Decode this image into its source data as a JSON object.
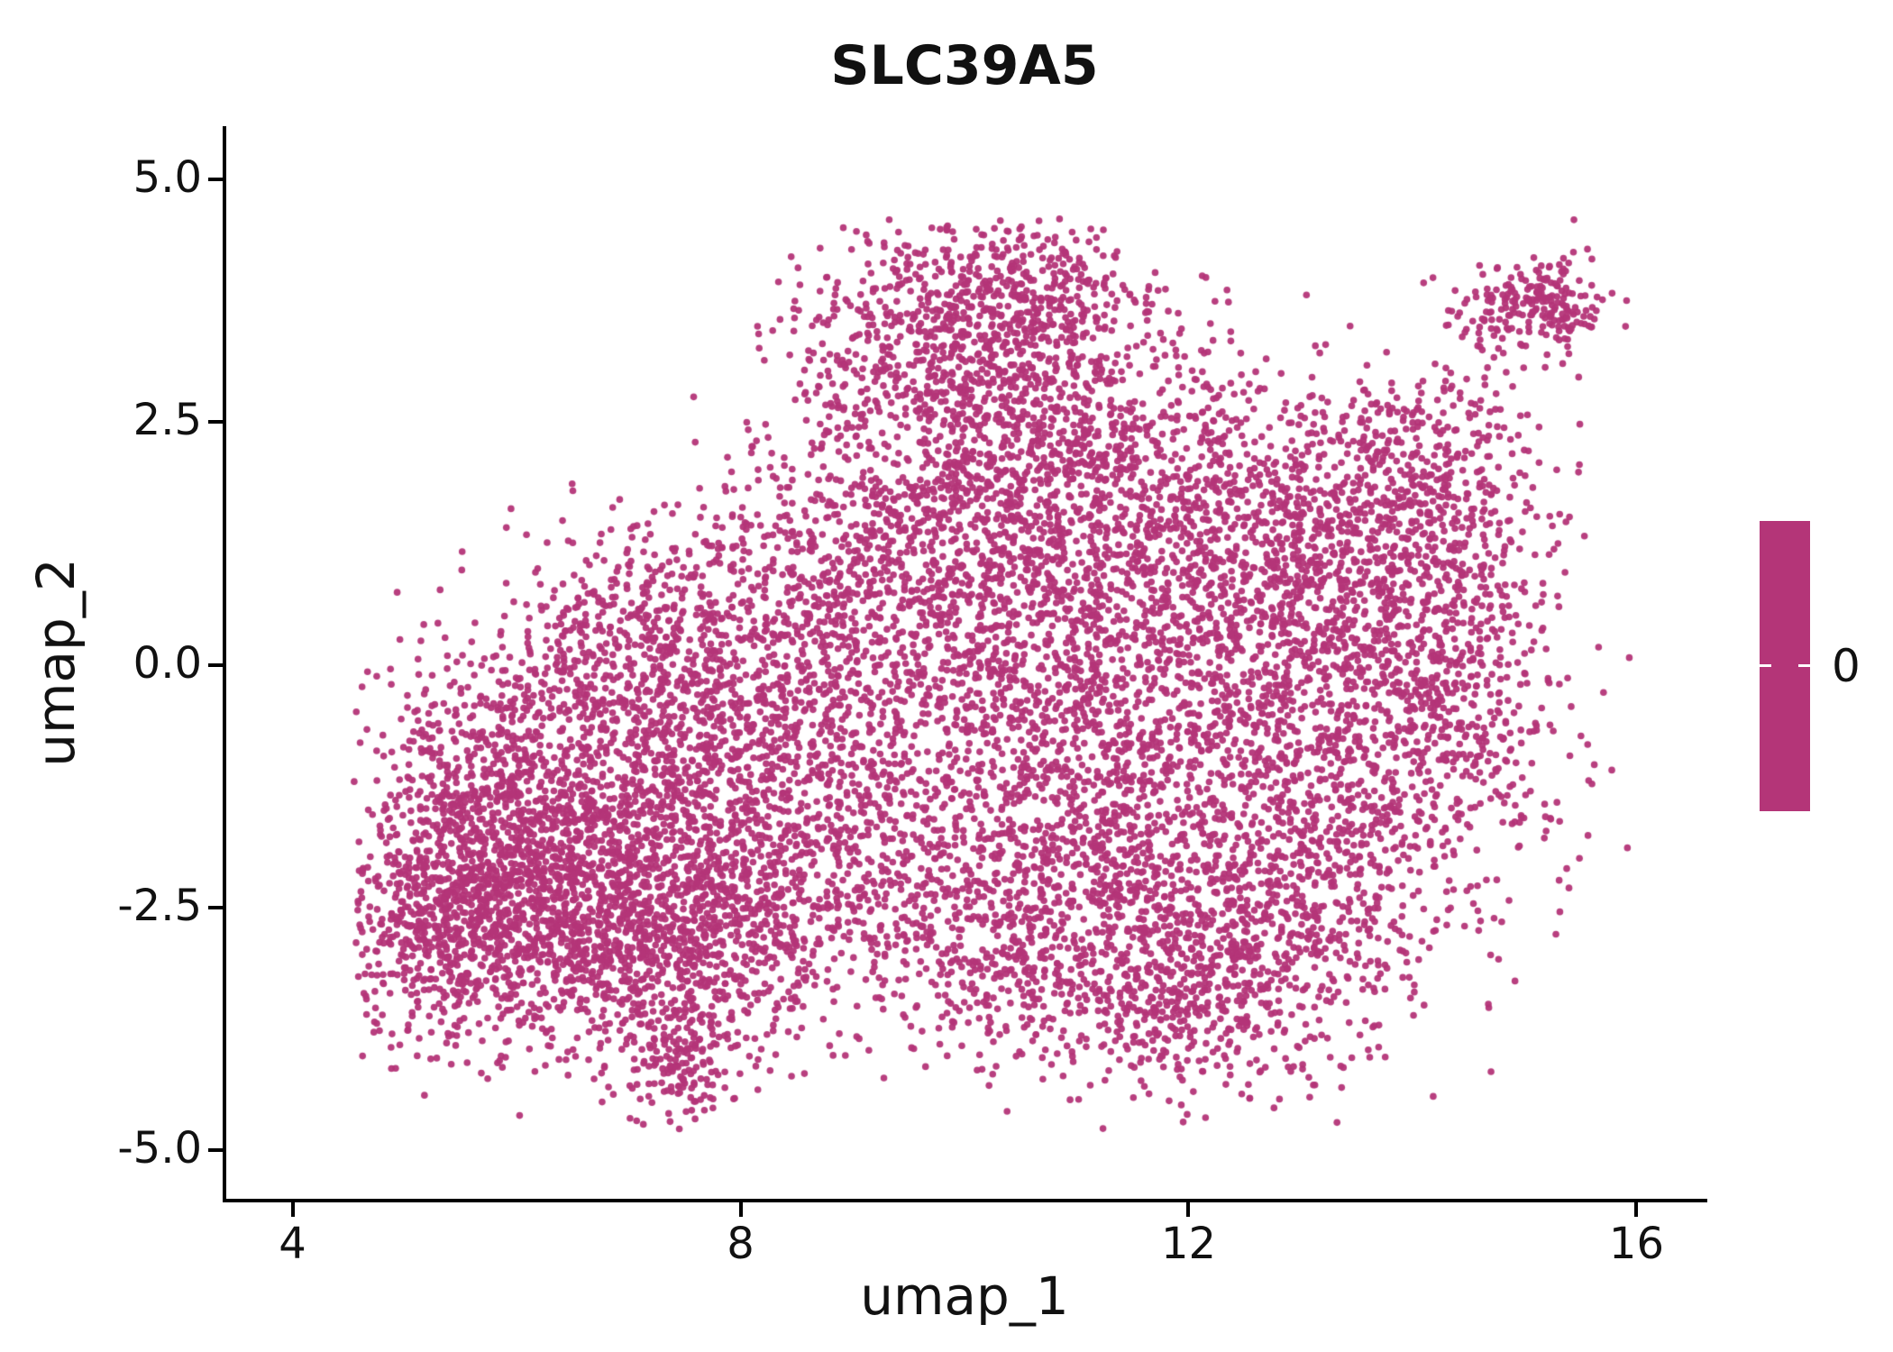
{
  "chart_data": {
    "type": "scatter",
    "title": "SLC39A5",
    "xlabel": "umap_1",
    "ylabel": "umap_2",
    "xlim": [
      3.4,
      16.6
    ],
    "ylim": [
      -5.5,
      5.55
    ],
    "xticks": [
      4,
      8,
      12,
      16
    ],
    "xtick_labels": [
      "4",
      "8",
      "12",
      "16"
    ],
    "yticks": [
      -5.0,
      -2.5,
      0.0,
      2.5,
      5.0
    ],
    "ytick_labels": [
      "-5.0",
      "-2.5",
      "0.0",
      "2.5",
      "5.0"
    ],
    "grid": false,
    "legend_position": "right",
    "point_color": "#b43578",
    "point_radius_px": 3.8,
    "n_points_approx": 13500,
    "expression_value": 0,
    "colorbar": {
      "tick_label": "0",
      "color": "#b43578"
    },
    "clip": {
      "xmin": 4.55,
      "xmax": 15.95,
      "ymin": -4.8,
      "ymax": 4.6
    },
    "clusters": [
      {
        "x": 5.6,
        "y": -1.6,
        "sx": 0.55,
        "sy": 0.75,
        "n": 550
      },
      {
        "x": 6.1,
        "y": -2.6,
        "sx": 0.75,
        "sy": 0.65,
        "n": 900
      },
      {
        "x": 6.6,
        "y": -1.4,
        "sx": 0.8,
        "sy": 0.8,
        "n": 700
      },
      {
        "x": 7.4,
        "y": -2.9,
        "sx": 0.75,
        "sy": 0.6,
        "n": 650
      },
      {
        "x": 7.3,
        "y": -0.6,
        "sx": 0.8,
        "sy": 0.8,
        "n": 600
      },
      {
        "x": 8.3,
        "y": -2.0,
        "sx": 0.8,
        "sy": 0.8,
        "n": 550
      },
      {
        "x": 8.8,
        "y": -0.4,
        "sx": 0.8,
        "sy": 0.9,
        "n": 550
      },
      {
        "x": 9.6,
        "y": 1.2,
        "sx": 0.8,
        "sy": 0.9,
        "n": 600
      },
      {
        "x": 10.3,
        "y": 2.5,
        "sx": 0.7,
        "sy": 0.7,
        "n": 550
      },
      {
        "x": 10.4,
        "y": 3.8,
        "sx": 0.55,
        "sy": 0.45,
        "n": 500
      },
      {
        "x": 10.6,
        "y": 0.3,
        "sx": 0.9,
        "sy": 1.0,
        "n": 700
      },
      {
        "x": 11.0,
        "y": -1.6,
        "sx": 0.9,
        "sy": 0.9,
        "n": 650
      },
      {
        "x": 11.6,
        "y": 1.8,
        "sx": 0.9,
        "sy": 0.8,
        "n": 650
      },
      {
        "x": 12.4,
        "y": 0.4,
        "sx": 0.9,
        "sy": 1.0,
        "n": 750
      },
      {
        "x": 12.4,
        "y": -2.3,
        "sx": 1.0,
        "sy": 0.9,
        "n": 900
      },
      {
        "x": 13.5,
        "y": 1.3,
        "sx": 0.8,
        "sy": 0.8,
        "n": 600
      },
      {
        "x": 13.7,
        "y": -0.9,
        "sx": 0.8,
        "sy": 0.9,
        "n": 650
      },
      {
        "x": 11.7,
        "y": -3.4,
        "sx": 0.8,
        "sy": 0.5,
        "n": 450
      },
      {
        "x": 10.1,
        "y": -2.8,
        "sx": 0.7,
        "sy": 0.6,
        "n": 350
      },
      {
        "x": 14.3,
        "y": 0.2,
        "sx": 0.5,
        "sy": 0.8,
        "n": 300
      },
      {
        "x": 14.1,
        "y": 2.2,
        "sx": 0.5,
        "sy": 0.5,
        "n": 220
      },
      {
        "x": 5.2,
        "y": -2.9,
        "sx": 0.4,
        "sy": 0.5,
        "n": 220
      },
      {
        "x": 7.45,
        "y": -4.15,
        "sx": 0.25,
        "sy": 0.32,
        "n": 150
      },
      {
        "x": 15.1,
        "y": 3.72,
        "sx": 0.36,
        "sy": 0.26,
        "n": 230
      },
      {
        "x": 9.3,
        "y": 3.3,
        "sx": 0.45,
        "sy": 0.5,
        "n": 200
      },
      {
        "x": 6.9,
        "y": 0.6,
        "sx": 0.6,
        "sy": 0.5,
        "n": 180
      },
      {
        "x": 8.0,
        "y": 1.0,
        "sx": 0.6,
        "sy": 0.6,
        "n": 160
      }
    ]
  }
}
